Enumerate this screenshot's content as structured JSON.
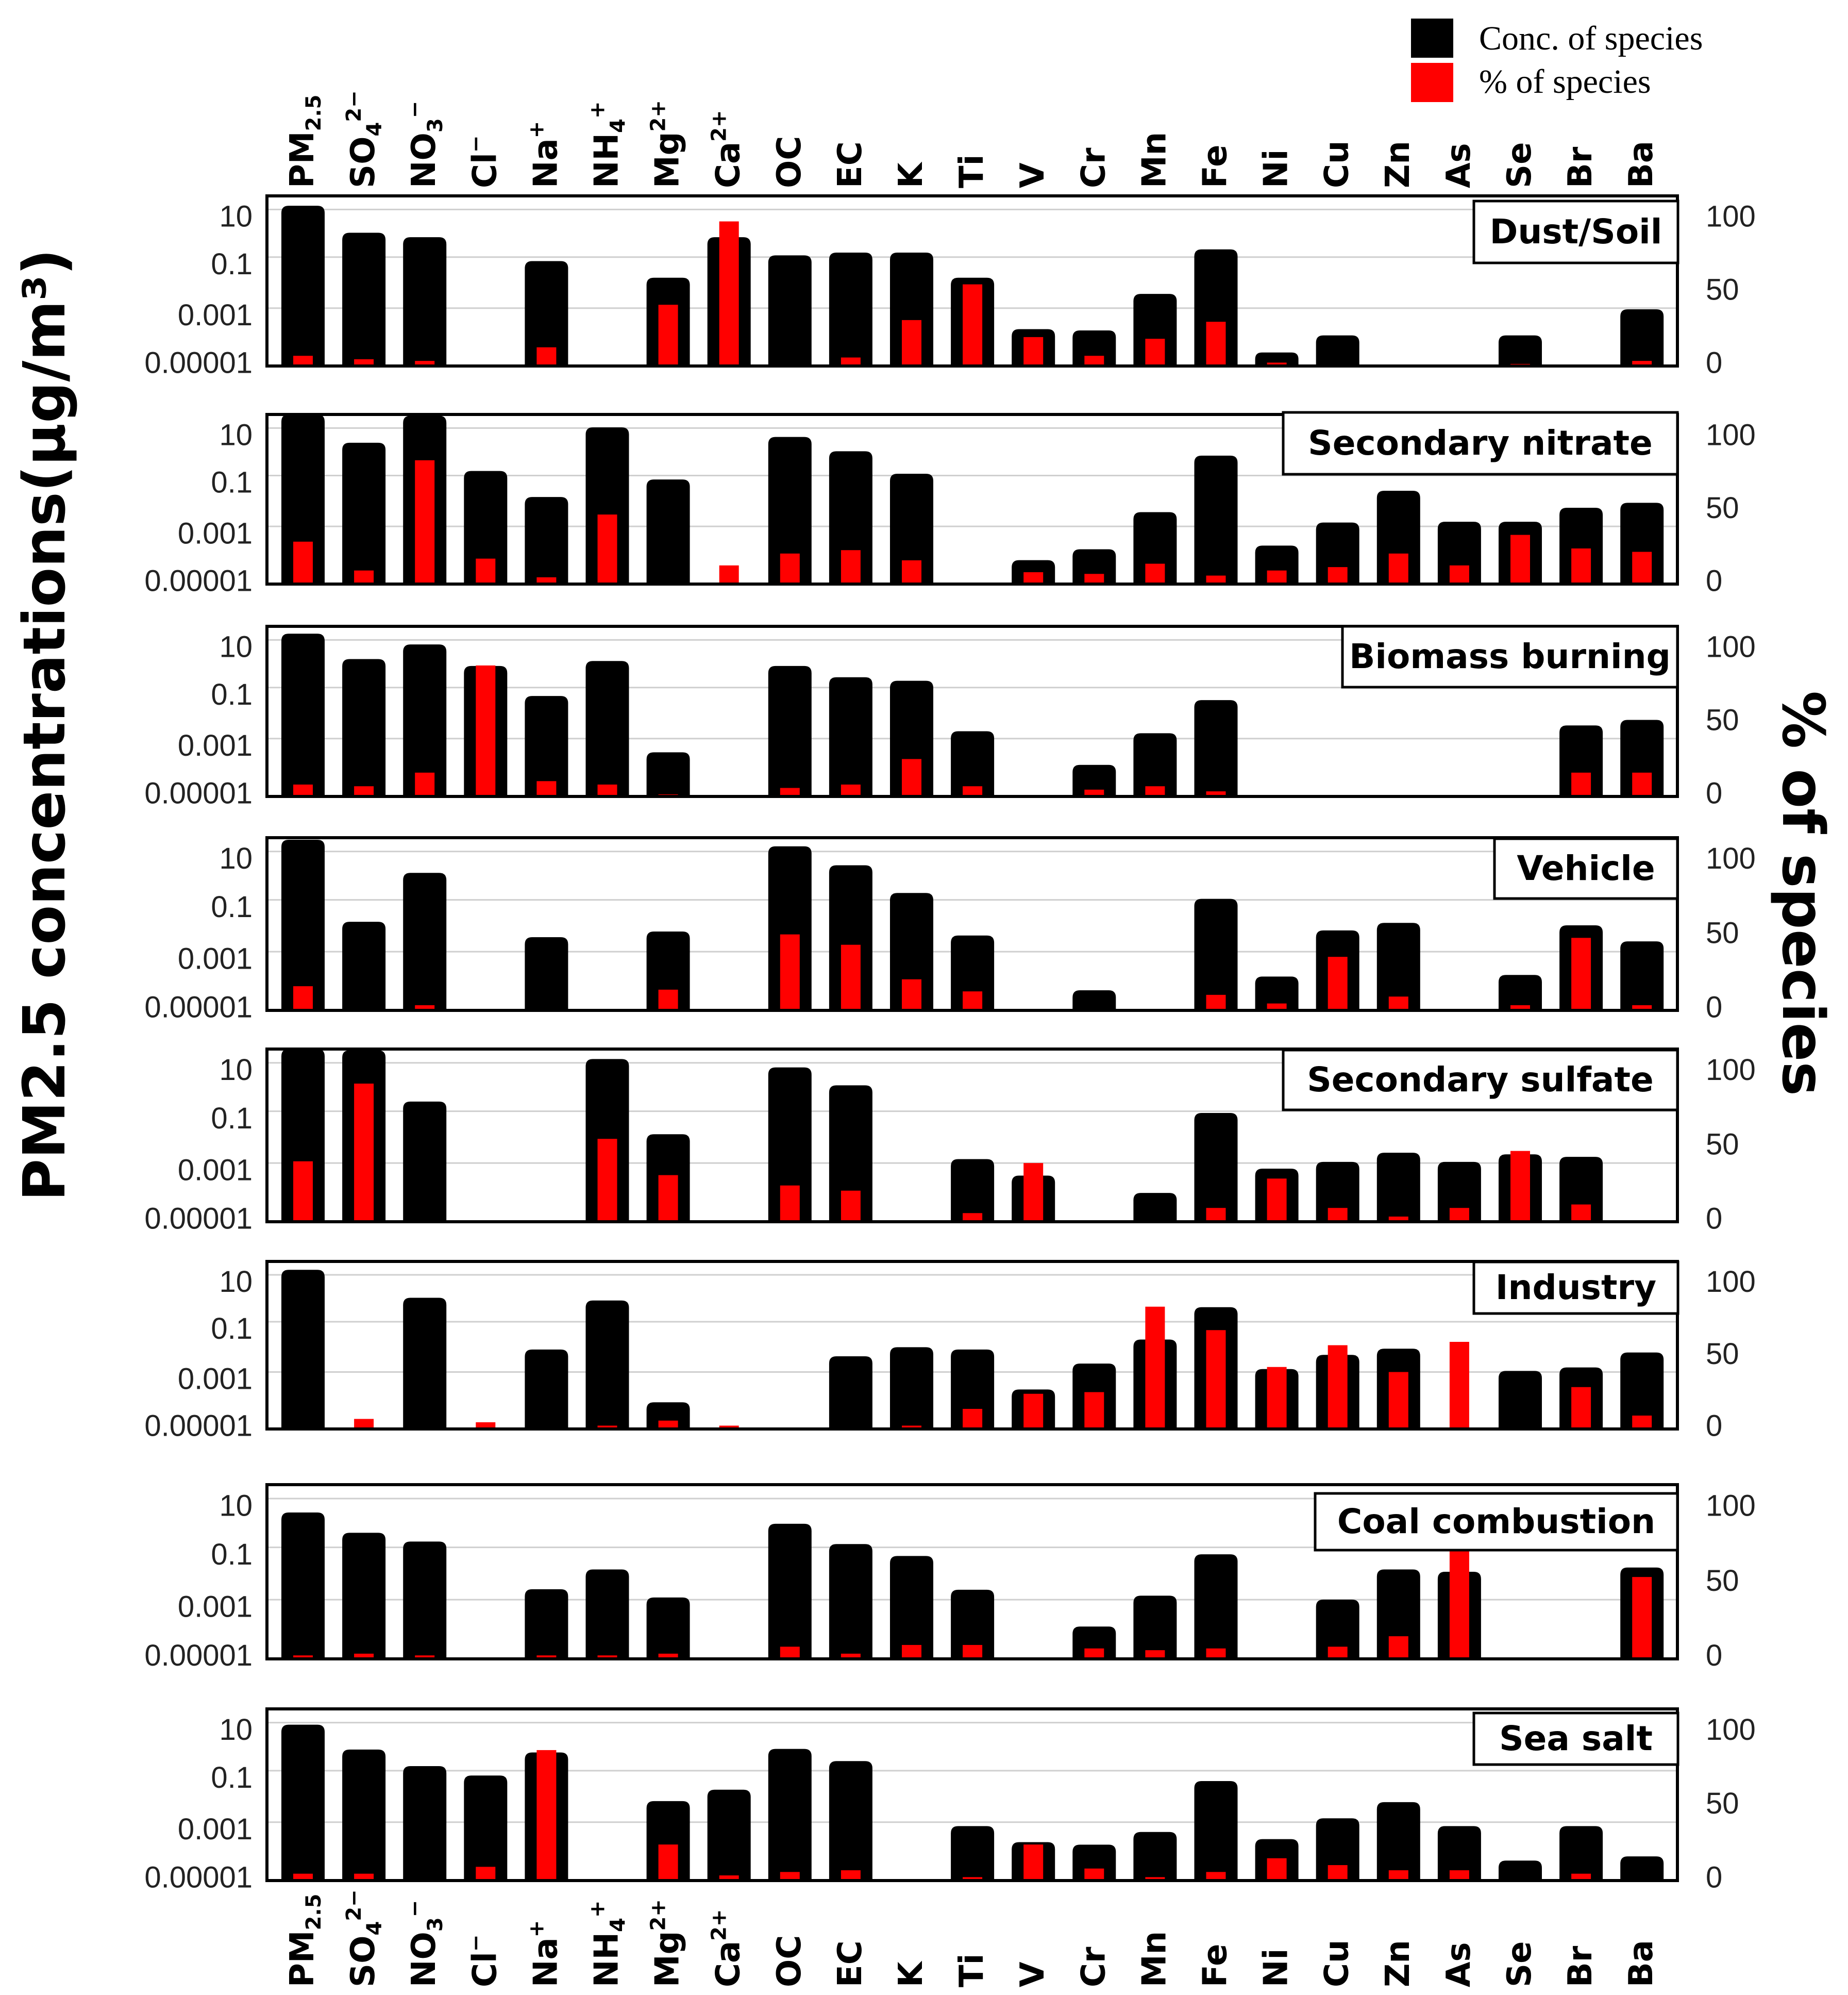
{
  "chart_data": {
    "type": "bar",
    "ylabel_left": "PM2.5 concentrations(μg/m³)",
    "ylabel_right": "% of species",
    "legend": [
      {
        "label": "Conc. of species",
        "color": "#000000"
      },
      {
        "label": "% of species",
        "color": "#ff0000"
      }
    ],
    "legend_position": "top-right",
    "left_ticks": [
      "10",
      "0.1",
      "0.001",
      "0.00001"
    ],
    "right_ticks": [
      "100",
      "50",
      "0"
    ],
    "log_range": [
      -5,
      1
    ],
    "percent_range": [
      0,
      100
    ],
    "categories": [
      "PM2.5",
      "SO4 2−",
      "NO3 −",
      "Cl−",
      "Na+",
      "NH4 +",
      "Mg2+",
      "Ca2+",
      "OC",
      "EC",
      "K",
      "Ti",
      "V",
      "Cr",
      "Mn",
      "Fe",
      "Ni",
      "Cu",
      "Zn",
      "As",
      "Se",
      "Br",
      "Ba"
    ],
    "category_labels": [
      {
        "base": "PM",
        "sub": "2.5",
        "sup": ""
      },
      {
        "base": "SO",
        "sub": "4",
        "sup": "2−"
      },
      {
        "base": "NO",
        "sub": "3",
        "sup": "−"
      },
      {
        "base": "Cl",
        "sub": "",
        "sup": "−"
      },
      {
        "base": "Na",
        "sub": "",
        "sup": "+"
      },
      {
        "base": "NH",
        "sub": "4",
        "sup": "+"
      },
      {
        "base": "Mg",
        "sub": "",
        "sup": "2+"
      },
      {
        "base": "Ca",
        "sub": "",
        "sup": "2+"
      },
      {
        "base": "OC",
        "sub": "",
        "sup": ""
      },
      {
        "base": "EC",
        "sub": "",
        "sup": ""
      },
      {
        "base": "K",
        "sub": "",
        "sup": ""
      },
      {
        "base": "Ti",
        "sub": "",
        "sup": ""
      },
      {
        "base": "V",
        "sub": "",
        "sup": ""
      },
      {
        "base": "Cr",
        "sub": "",
        "sup": ""
      },
      {
        "base": "Mn",
        "sub": "",
        "sup": ""
      },
      {
        "base": "Fe",
        "sub": "",
        "sup": ""
      },
      {
        "base": "Ni",
        "sub": "",
        "sup": ""
      },
      {
        "base": "Cu",
        "sub": "",
        "sup": ""
      },
      {
        "base": "Zn",
        "sub": "",
        "sup": ""
      },
      {
        "base": "As",
        "sub": "",
        "sup": ""
      },
      {
        "base": "Se",
        "sub": "",
        "sup": ""
      },
      {
        "base": "Br",
        "sub": "",
        "sup": ""
      },
      {
        "base": "Ba",
        "sub": "",
        "sup": ""
      }
    ],
    "panels": [
      {
        "title": "Dust/Soil",
        "conc": [
          4.5,
          0.5,
          0.35,
          null,
          0.05,
          null,
          0.013,
          0.35,
          0.08,
          0.1,
          0.1,
          0.013,
          0.0002,
          0.00018,
          0.0035,
          0.13,
          3e-05,
          0.00012,
          null,
          null,
          0.00012,
          null,
          0.001
        ],
        "percent": [
          6,
          4,
          3,
          null,
          11,
          null,
          36,
          85,
          null,
          5,
          27,
          48,
          17,
          6,
          16,
          26,
          2,
          null,
          null,
          null,
          1,
          null,
          3
        ]
      },
      {
        "title": "Secondary nitrate",
        "conc": [
          10,
          1,
          9,
          0.1,
          0.012,
          3.5,
          0.05,
          null,
          1.6,
          0.5,
          0.08,
          null,
          7e-05,
          0.00017,
          0.0035,
          0.35,
          0.00023,
          0.0015,
          0.02,
          0.0016,
          0.0016,
          0.005,
          0.0075
        ],
        "percent": [
          25,
          8,
          73,
          15,
          4,
          41,
          null,
          11,
          18,
          20,
          14,
          null,
          7,
          6,
          12,
          5,
          8,
          10,
          18,
          11,
          29,
          21,
          19
        ]
      },
      {
        "title": "Biomass burning",
        "conc": [
          5.5,
          0.7,
          2.3,
          0.4,
          0.035,
          0.6,
          0.00036,
          null,
          0.4,
          0.16,
          0.12,
          0.002,
          null,
          0.00013,
          0.0017,
          0.025,
          null,
          null,
          null,
          null,
          null,
          0.0032,
          0.005
        ],
        "percent": [
          7,
          6,
          14,
          77,
          9,
          7,
          1,
          null,
          5,
          7,
          22,
          6,
          null,
          4,
          6,
          3,
          null,
          null,
          null,
          null,
          null,
          14,
          14
        ]
      },
      {
        "title": "Vehicle",
        "conc": [
          8.5,
          0.012,
          0.6,
          null,
          0.0035,
          null,
          0.0055,
          null,
          5,
          1.1,
          0.12,
          0.004,
          null,
          5e-05,
          null,
          0.075,
          0.00015,
          0.006,
          0.011,
          null,
          0.00017,
          0.009,
          0.0025
        ],
        "percent": [
          14,
          null,
          3,
          null,
          null,
          null,
          12,
          null,
          44,
          38,
          18,
          11,
          null,
          null,
          null,
          9,
          4,
          31,
          8,
          null,
          3,
          42,
          3
        ]
      },
      {
        "title": "Secondary sulfate",
        "conc": [
          10,
          9,
          0.15,
          null,
          null,
          4.5,
          0.011,
          null,
          2.3,
          0.55,
          null,
          0.0015,
          0.0004,
          null,
          0.0001,
          0.06,
          0.0007,
          0.0012,
          0.0025,
          0.0012,
          0.0022,
          0.0018,
          null
        ],
        "percent": [
          35,
          80,
          null,
          null,
          null,
          48,
          27,
          null,
          21,
          18,
          null,
          5,
          34,
          null,
          null,
          8,
          25,
          8,
          3,
          8,
          41,
          10,
          null
        ]
      },
      {
        "title": "Industry",
        "conc": [
          5,
          null,
          0.5,
          null,
          0.007,
          0.4,
          9e-05,
          null,
          null,
          0.004,
          0.0085,
          0.007,
          0.00026,
          0.0022,
          0.016,
          0.23,
          0.0014,
          0.0045,
          0.0075,
          null,
          0.0012,
          0.0016,
          0.0055
        ],
        "percent": [
          null,
          6,
          null,
          4,
          null,
          2,
          5,
          2,
          null,
          null,
          2,
          12,
          21,
          22,
          73,
          59,
          37,
          50,
          34,
          52,
          null,
          25,
          8
        ]
      },
      {
        "title": "Coal combustion",
        "conc": [
          1.1,
          0.22,
          0.11,
          null,
          0.0025,
          0.012,
          0.0013,
          null,
          0.45,
          0.09,
          0.035,
          0.0024,
          null,
          0.00013,
          0.0015,
          0.04,
          null,
          0.0011,
          0.012,
          0.01,
          null,
          null,
          0.014
        ],
        "percent": [
          2,
          3,
          2,
          null,
          2,
          2,
          3,
          null,
          7,
          3,
          8,
          8,
          null,
          6,
          5,
          6,
          null,
          7,
          13,
          77,
          null,
          null,
          47
        ]
      },
      {
        "title": "Sea salt",
        "conc": [
          2.8,
          0.38,
          0.1,
          0.047,
          0.3,
          null,
          0.006,
          0.015,
          0.4,
          0.15,
          null,
          0.0008,
          0.00022,
          0.00018,
          0.0005,
          0.03,
          0.00028,
          0.0015,
          0.0055,
          0.0008,
          5e-05,
          0.0008,
          7e-05
        ],
        "percent": [
          4,
          4,
          null,
          8,
          76,
          null,
          21,
          3,
          5,
          6,
          null,
          2,
          21,
          7,
          2,
          5,
          13,
          9,
          6,
          6,
          null,
          4,
          null
        ]
      }
    ]
  }
}
